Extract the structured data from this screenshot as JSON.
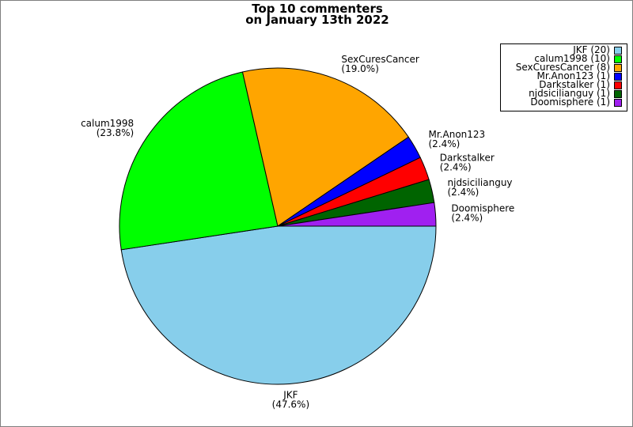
{
  "chart_data": {
    "type": "pie",
    "title_lines": [
      "Top 10 commenters",
      "on January 13th 2022"
    ],
    "slices": [
      {
        "name": "JKF",
        "value": 20,
        "percent_label": "(47.6%)",
        "legend_label": "JKF (20)",
        "color": "#87ceeb"
      },
      {
        "name": "calum1998",
        "value": 10,
        "percent_label": "(23.8%)",
        "legend_label": "calum1998 (10)",
        "color": "#00ff00"
      },
      {
        "name": "SexCuresCancer",
        "value": 8,
        "percent_label": "(19.0%)",
        "legend_label": "SexCuresCancer (8)",
        "color": "#ffa500"
      },
      {
        "name": "Mr.Anon123",
        "value": 1,
        "percent_label": "(2.4%)",
        "legend_label": "Mr.Anon123 (1)",
        "color": "#0000ff"
      },
      {
        "name": "Darkstalker",
        "value": 1,
        "percent_label": "(2.4%)",
        "legend_label": "Darkstalker (1)",
        "color": "#ff0000"
      },
      {
        "name": "njdsicilianguy",
        "value": 1,
        "percent_label": "(2.4%)",
        "legend_label": "njdsicilianguy (1)",
        "color": "#006400"
      },
      {
        "name": "Doomisphere",
        "value": 1,
        "percent_label": "(2.4%)",
        "legend_label": "Doomisphere (1)",
        "color": "#a020f0"
      }
    ],
    "legend_position": "top-right",
    "direction": "clockwise from 3 o'clock"
  }
}
